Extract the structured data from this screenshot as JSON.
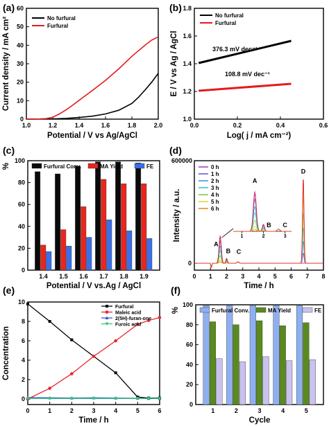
{
  "chart_data": [
    {
      "panel_label": "(a)",
      "type": "line",
      "xlabel": "Potential / V vs Ag/AgCl",
      "ylabel": "Current density / mA cm²",
      "xlim": [
        1.0,
        2.0
      ],
      "ylim": [
        0,
        60
      ],
      "xticks": [
        "1.0",
        "1.2",
        "1.4",
        "1.6",
        "1.8",
        "2.0"
      ],
      "yticks": [
        "0",
        "10",
        "20",
        "30",
        "40",
        "50",
        "60"
      ],
      "legend": "top-left",
      "series": [
        {
          "name": "No furfural",
          "color": "#000000",
          "x": [
            1.0,
            1.2,
            1.3,
            1.4,
            1.5,
            1.6,
            1.7,
            1.8,
            1.85,
            1.9,
            1.95,
            2.0
          ],
          "y": [
            0.0,
            0.1,
            0.4,
            0.9,
            1.6,
            2.8,
            4.8,
            8.5,
            11.8,
            15.8,
            20.0,
            24.8
          ]
        },
        {
          "name": "Furfural",
          "color": "#e41a1c",
          "x": [
            1.0,
            1.1,
            1.15,
            1.2,
            1.25,
            1.3,
            1.35,
            1.4,
            1.5,
            1.6,
            1.7,
            1.8,
            1.9,
            1.95,
            2.0
          ],
          "y": [
            0.0,
            0.1,
            0.3,
            1.0,
            2.8,
            5.0,
            7.5,
            10.2,
            15.5,
            21.0,
            27.2,
            34.0,
            40.0,
            42.8,
            44.5
          ]
        }
      ]
    },
    {
      "panel_label": "(b)",
      "type": "line",
      "xlabel": "Log( j / mA cm⁻²)",
      "ylabel": "E / V vs Ag / AgCl",
      "xlim": [
        0.0,
        0.6
      ],
      "ylim": [
        1.0,
        1.8
      ],
      "xticks": [
        "0.0",
        "0.2",
        "0.4",
        "0.6"
      ],
      "yticks": [
        "1.0",
        "1.2",
        "1.4",
        "1.6",
        "1.8"
      ],
      "legend": "top-left",
      "annotations": [
        "376.3 mV dec⁻¹",
        "108.8 mV dec⁻¹"
      ],
      "series": [
        {
          "name": "No furfural",
          "color": "#000000",
          "x": [
            0.02,
            0.45
          ],
          "y": [
            1.405,
            1.565
          ]
        },
        {
          "name": "Furfural",
          "color": "#e41a1c",
          "x": [
            0.02,
            0.45
          ],
          "y": [
            1.205,
            1.255
          ]
        }
      ]
    },
    {
      "panel_label": "(c)",
      "type": "bar",
      "xlabel": "Potential / V vs.Ag / AgCl",
      "ylabel": "%",
      "ylim": [
        0,
        100
      ],
      "yticks": [
        "0",
        "20",
        "40",
        "60",
        "80",
        "100"
      ],
      "categories": [
        "1.4",
        "1.5",
        "1.6",
        "1.7",
        "1.8",
        "1.9"
      ],
      "legend": "top",
      "series": [
        {
          "name": "Furfural Conv.",
          "color": "#0a0a0a",
          "values": [
            90,
            88,
            95,
            99,
            99,
            98
          ]
        },
        {
          "name": "MA Yield",
          "color": "#e8261e",
          "values": [
            23,
            37,
            58,
            83,
            79,
            79
          ]
        },
        {
          "name": "FE",
          "color": "#3b6fe8",
          "values": [
            17,
            22,
            30,
            46,
            36,
            29
          ]
        }
      ]
    },
    {
      "panel_label": "(d)",
      "type": "line",
      "xlabel": "Time / h",
      "ylabel": "Intensity / a.u.",
      "xlim": [
        0,
        8
      ],
      "ylim": [
        -40000,
        600000
      ],
      "xticks": [
        "0",
        "1",
        "2",
        "3",
        "4",
        "5",
        "6",
        "7",
        "8"
      ],
      "yticks": [
        "0",
        "600000"
      ],
      "legend": "top-left",
      "peak_labels": [
        "A",
        "B",
        "C",
        "D"
      ],
      "inset": {
        "xticks": [
          "1",
          "2",
          "3"
        ],
        "peak_labels": [
          "A",
          "B",
          "C"
        ]
      },
      "peaks": [
        {
          "name": "A",
          "time": 1.6
        },
        {
          "name": "B",
          "time": 2.0
        },
        {
          "name": "C",
          "time": 2.7
        },
        {
          "name": "D",
          "time": 6.75
        }
      ],
      "series": [
        {
          "name": "0 h",
          "color": "#b03cc7",
          "A": 160000,
          "D": 0
        },
        {
          "name": "1 h",
          "color": "#6a5cd8",
          "A": 130000,
          "D": 60000
        },
        {
          "name": "2 h",
          "color": "#3c9be0",
          "A": 100000,
          "D": 130000
        },
        {
          "name": "3 h",
          "color": "#38c8c8",
          "A": 75000,
          "D": 210000
        },
        {
          "name": "4 h",
          "color": "#7ccb4a",
          "A": 45000,
          "D": 300000
        },
        {
          "name": "5 h",
          "color": "#e8d62a",
          "A": 20000,
          "D": 390000
        },
        {
          "name": "6 h",
          "color": "#f08a1c",
          "A": 8000,
          "D": 480000
        },
        {
          "name": "",
          "color": "#e0262a",
          "A": 150000,
          "D": 500000
        }
      ]
    },
    {
      "panel_label": "(e)",
      "type": "line",
      "xlabel": "Time / h",
      "ylabel": "Concentration",
      "xlim": [
        0,
        6
      ],
      "ylim": [
        0,
        10
      ],
      "xticks": [
        "0",
        "1",
        "2",
        "3",
        "4",
        "5",
        "6"
      ],
      "yticks": [
        "0",
        "2",
        "4",
        "6",
        "8",
        "10"
      ],
      "legend": "top-right",
      "series": [
        {
          "name": "Furfural",
          "color": "#000000",
          "marker": "square",
          "x": [
            0,
            1,
            2,
            3,
            4,
            5,
            5.5,
            6
          ],
          "y": [
            9.8,
            8.0,
            6.1,
            4.4,
            2.7,
            0.2,
            0.1,
            0.1
          ]
        },
        {
          "name": "Maleic acid",
          "color": "#e8262e",
          "marker": "circle",
          "x": [
            0,
            1,
            2,
            3,
            4,
            5,
            5.5,
            6
          ],
          "y": [
            0.0,
            1.1,
            2.6,
            4.4,
            6.0,
            7.7,
            8.1,
            8.4
          ]
        },
        {
          "name": "2(5H)-furan-one",
          "color": "#3b57d8",
          "marker": "triangle",
          "x": [
            0,
            1,
            2,
            3,
            4,
            5,
            5.5,
            6
          ],
          "y": [
            0.15,
            0.12,
            0.1,
            0.12,
            0.1,
            0.08,
            0.05,
            0.05
          ]
        },
        {
          "name": "Furoic acid",
          "color": "#3ac47a",
          "marker": "triangle-down",
          "x": [
            0,
            1,
            2,
            3,
            4,
            5,
            5.5,
            6
          ],
          "y": [
            0.05,
            0.05,
            0.05,
            0.05,
            0.05,
            0.05,
            0.05,
            0.05
          ]
        }
      ]
    },
    {
      "panel_label": "(f)",
      "type": "bar",
      "xlabel": "Cycle",
      "ylabel": "%",
      "ylim": [
        0,
        100
      ],
      "yticks": [
        "0",
        "20",
        "40",
        "60",
        "80",
        "100"
      ],
      "categories": [
        "1",
        "2",
        "3",
        "4",
        "5"
      ],
      "legend": "top",
      "series": [
        {
          "name": "Furfural Conv.",
          "color": "#8fb0f0",
          "values": [
            99,
            99,
            99,
            99,
            99
          ]
        },
        {
          "name": "MA Yield",
          "color": "#5a8a1e",
          "values": [
            83,
            80,
            84,
            79,
            82
          ]
        },
        {
          "name": "FE",
          "color": "#c9c2ee",
          "values": [
            46,
            43,
            48,
            44,
            45
          ]
        }
      ]
    }
  ]
}
